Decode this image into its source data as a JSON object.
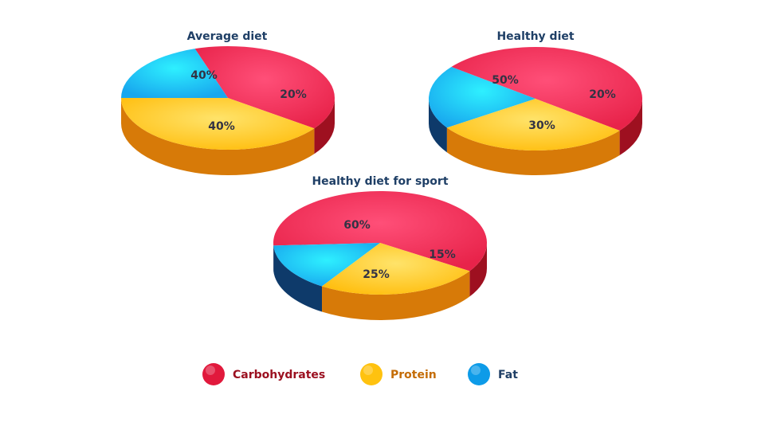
{
  "colors": {
    "Carbohydrates": {
      "top": "#e8234a",
      "topLight": "#ff4f78",
      "side": "#9e1020"
    },
    "Protein": {
      "top": "#ffbe0f",
      "topLight": "#ffe36a",
      "side": "#d77a08"
    },
    "Fat": {
      "top": "#18a7ee",
      "topLight": "#2ef0ff",
      "side": "#0e3a6a"
    }
  },
  "legend": {
    "items": [
      {
        "label": "Carbohydrates",
        "color": "#e1193c",
        "text_color": "#9b1020"
      },
      {
        "label": "Protein",
        "color": "#ffc20f",
        "text_color": "#c46c06"
      },
      {
        "label": "Fat",
        "color": "#0d9be8",
        "text_color": "#1f3f66"
      }
    ]
  },
  "chart_data": [
    {
      "type": "pie",
      "title": "Average diet",
      "slices": [
        {
          "label": "Carbohydrates",
          "value": 40,
          "text": "40%"
        },
        {
          "label": "Fat",
          "value": 20,
          "text": "20%"
        },
        {
          "label": "Protein",
          "value": 40,
          "text": "40%"
        }
      ]
    },
    {
      "type": "pie",
      "title": "Healthy diet",
      "slices": [
        {
          "label": "Carbohydrates",
          "value": 50,
          "text": "50%"
        },
        {
          "label": "Fat",
          "value": 20,
          "text": "20%"
        },
        {
          "label": "Protein",
          "value": 30,
          "text": "30%"
        }
      ]
    },
    {
      "type": "pie",
      "title": "Healthy diet for sport",
      "slices": [
        {
          "label": "Carbohydrates",
          "value": 60,
          "text": "60%"
        },
        {
          "label": "Fat",
          "value": 15,
          "text": "15%"
        },
        {
          "label": "Protein",
          "value": 25,
          "text": "25%"
        }
      ]
    }
  ]
}
